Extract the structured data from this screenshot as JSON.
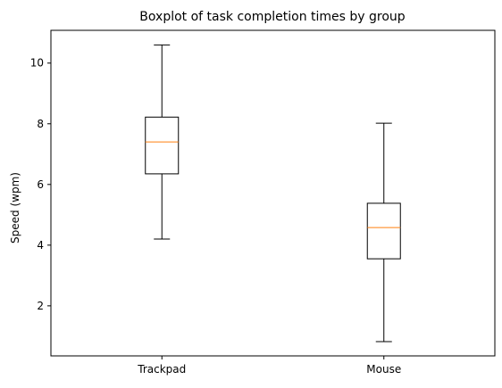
{
  "chart_data": {
    "type": "box",
    "title": "Boxplot of task completion times by group",
    "xlabel": "",
    "ylabel": "Speed (wpm)",
    "ylim": [
      0.35,
      11.08
    ],
    "yticks": [
      2,
      4,
      6,
      8,
      10
    ],
    "categories": [
      "Trackpad",
      "Mouse"
    ],
    "boxes": [
      {
        "category": "Trackpad",
        "whisker_low": 4.2,
        "q1": 6.35,
        "median": 7.4,
        "q3": 8.22,
        "whisker_high": 10.6
      },
      {
        "category": "Mouse",
        "whisker_low": 0.82,
        "q1": 3.55,
        "median": 4.58,
        "q3": 5.38,
        "whisker_high": 8.02
      }
    ],
    "grid": false,
    "colors": {
      "box": "#000000",
      "median": "#ff7f0e",
      "axes": "#000000"
    }
  }
}
